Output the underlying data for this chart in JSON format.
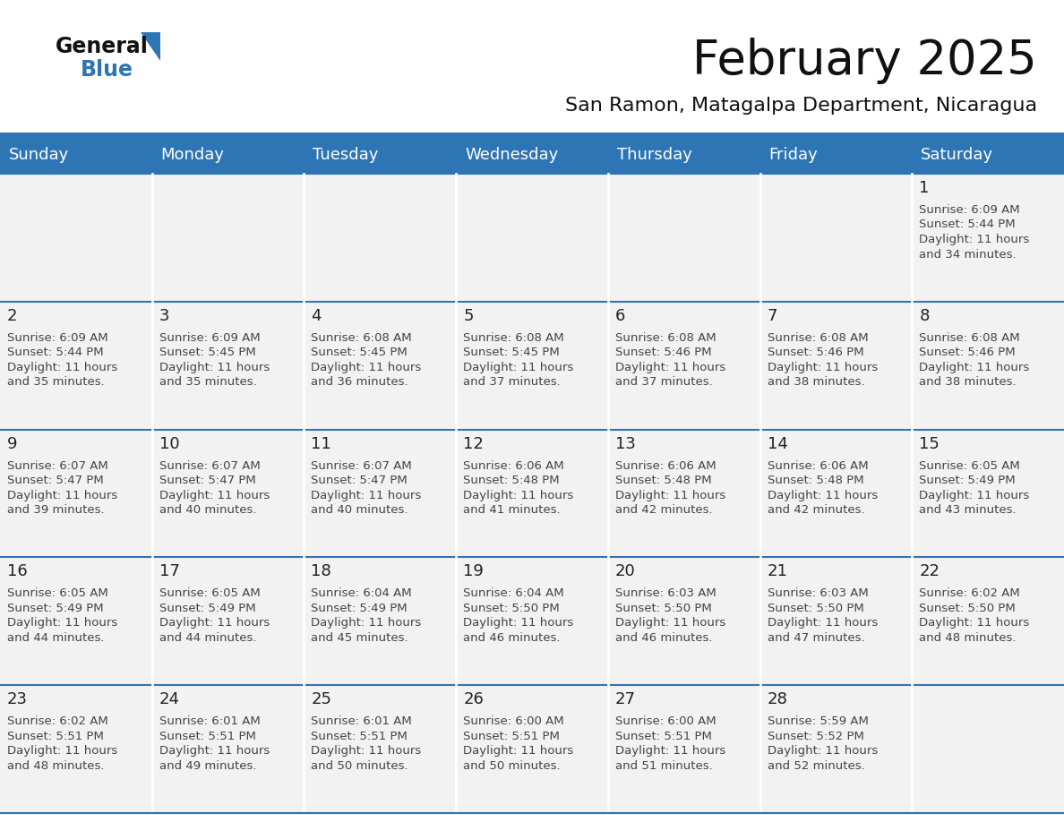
{
  "title": "February 2025",
  "subtitle": "San Ramon, Matagalpa Department, Nicaragua",
  "days_of_week": [
    "Sunday",
    "Monday",
    "Tuesday",
    "Wednesday",
    "Thursday",
    "Friday",
    "Saturday"
  ],
  "header_bg": "#2E75B6",
  "header_text": "#FFFFFF",
  "cell_bg_light": "#F2F2F2",
  "cell_bg_white": "#FFFFFF",
  "cell_border_color": "#FFFFFF",
  "row_divider_color": "#2E75B6",
  "day_number_color": "#222222",
  "info_text_color": "#444444",
  "title_color": "#111111",
  "subtitle_color": "#111111",
  "logo_general_color": "#111111",
  "logo_blue_color": "#2E75B6",
  "weeks": [
    [
      {
        "day": null,
        "info": ""
      },
      {
        "day": null,
        "info": ""
      },
      {
        "day": null,
        "info": ""
      },
      {
        "day": null,
        "info": ""
      },
      {
        "day": null,
        "info": ""
      },
      {
        "day": null,
        "info": ""
      },
      {
        "day": 1,
        "info": "Sunrise: 6:09 AM\nSunset: 5:44 PM\nDaylight: 11 hours\nand 34 minutes."
      }
    ],
    [
      {
        "day": 2,
        "info": "Sunrise: 6:09 AM\nSunset: 5:44 PM\nDaylight: 11 hours\nand 35 minutes."
      },
      {
        "day": 3,
        "info": "Sunrise: 6:09 AM\nSunset: 5:45 PM\nDaylight: 11 hours\nand 35 minutes."
      },
      {
        "day": 4,
        "info": "Sunrise: 6:08 AM\nSunset: 5:45 PM\nDaylight: 11 hours\nand 36 minutes."
      },
      {
        "day": 5,
        "info": "Sunrise: 6:08 AM\nSunset: 5:45 PM\nDaylight: 11 hours\nand 37 minutes."
      },
      {
        "day": 6,
        "info": "Sunrise: 6:08 AM\nSunset: 5:46 PM\nDaylight: 11 hours\nand 37 minutes."
      },
      {
        "day": 7,
        "info": "Sunrise: 6:08 AM\nSunset: 5:46 PM\nDaylight: 11 hours\nand 38 minutes."
      },
      {
        "day": 8,
        "info": "Sunrise: 6:08 AM\nSunset: 5:46 PM\nDaylight: 11 hours\nand 38 minutes."
      }
    ],
    [
      {
        "day": 9,
        "info": "Sunrise: 6:07 AM\nSunset: 5:47 PM\nDaylight: 11 hours\nand 39 minutes."
      },
      {
        "day": 10,
        "info": "Sunrise: 6:07 AM\nSunset: 5:47 PM\nDaylight: 11 hours\nand 40 minutes."
      },
      {
        "day": 11,
        "info": "Sunrise: 6:07 AM\nSunset: 5:47 PM\nDaylight: 11 hours\nand 40 minutes."
      },
      {
        "day": 12,
        "info": "Sunrise: 6:06 AM\nSunset: 5:48 PM\nDaylight: 11 hours\nand 41 minutes."
      },
      {
        "day": 13,
        "info": "Sunrise: 6:06 AM\nSunset: 5:48 PM\nDaylight: 11 hours\nand 42 minutes."
      },
      {
        "day": 14,
        "info": "Sunrise: 6:06 AM\nSunset: 5:48 PM\nDaylight: 11 hours\nand 42 minutes."
      },
      {
        "day": 15,
        "info": "Sunrise: 6:05 AM\nSunset: 5:49 PM\nDaylight: 11 hours\nand 43 minutes."
      }
    ],
    [
      {
        "day": 16,
        "info": "Sunrise: 6:05 AM\nSunset: 5:49 PM\nDaylight: 11 hours\nand 44 minutes."
      },
      {
        "day": 17,
        "info": "Sunrise: 6:05 AM\nSunset: 5:49 PM\nDaylight: 11 hours\nand 44 minutes."
      },
      {
        "day": 18,
        "info": "Sunrise: 6:04 AM\nSunset: 5:49 PM\nDaylight: 11 hours\nand 45 minutes."
      },
      {
        "day": 19,
        "info": "Sunrise: 6:04 AM\nSunset: 5:50 PM\nDaylight: 11 hours\nand 46 minutes."
      },
      {
        "day": 20,
        "info": "Sunrise: 6:03 AM\nSunset: 5:50 PM\nDaylight: 11 hours\nand 46 minutes."
      },
      {
        "day": 21,
        "info": "Sunrise: 6:03 AM\nSunset: 5:50 PM\nDaylight: 11 hours\nand 47 minutes."
      },
      {
        "day": 22,
        "info": "Sunrise: 6:02 AM\nSunset: 5:50 PM\nDaylight: 11 hours\nand 48 minutes."
      }
    ],
    [
      {
        "day": 23,
        "info": "Sunrise: 6:02 AM\nSunset: 5:51 PM\nDaylight: 11 hours\nand 48 minutes."
      },
      {
        "day": 24,
        "info": "Sunrise: 6:01 AM\nSunset: 5:51 PM\nDaylight: 11 hours\nand 49 minutes."
      },
      {
        "day": 25,
        "info": "Sunrise: 6:01 AM\nSunset: 5:51 PM\nDaylight: 11 hours\nand 50 minutes."
      },
      {
        "day": 26,
        "info": "Sunrise: 6:00 AM\nSunset: 5:51 PM\nDaylight: 11 hours\nand 50 minutes."
      },
      {
        "day": 27,
        "info": "Sunrise: 6:00 AM\nSunset: 5:51 PM\nDaylight: 11 hours\nand 51 minutes."
      },
      {
        "day": 28,
        "info": "Sunrise: 5:59 AM\nSunset: 5:52 PM\nDaylight: 11 hours\nand 52 minutes."
      },
      {
        "day": null,
        "info": ""
      }
    ]
  ]
}
